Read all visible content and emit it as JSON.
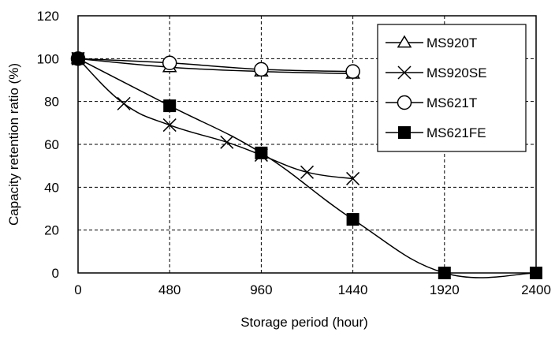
{
  "chart_data": {
    "type": "line",
    "xlabel": "Storage period (hour)",
    "ylabel": "Capacity retention ratio (%)",
    "xlim": [
      0,
      2400
    ],
    "ylim": [
      0,
      120
    ],
    "x_ticks": [
      "0",
      "480",
      "960",
      "1440",
      "1920",
      "2400"
    ],
    "y_ticks": [
      "0",
      "20",
      "40",
      "60",
      "80",
      "100",
      "120"
    ],
    "grid": "dashed",
    "legend_position": "top-right",
    "series": [
      {
        "name": "MS920T",
        "marker": "open-triangle",
        "x": [
          0,
          480,
          960,
          1440
        ],
        "y": [
          100,
          96,
          94,
          93
        ]
      },
      {
        "name": "MS920SE",
        "marker": "x",
        "x": [
          0,
          240,
          480,
          780,
          960,
          1200,
          1440
        ],
        "y": [
          100,
          79,
          69,
          61,
          55,
          47,
          44
        ]
      },
      {
        "name": "MS621T",
        "marker": "open-circle",
        "x": [
          0,
          480,
          960,
          1440
        ],
        "y": [
          100,
          98,
          95,
          94
        ]
      },
      {
        "name": "MS621FE",
        "marker": "filled-square",
        "x": [
          0,
          480,
          960,
          1440,
          1920,
          2400
        ],
        "y": [
          100,
          78,
          56,
          25,
          0,
          0
        ]
      }
    ]
  }
}
